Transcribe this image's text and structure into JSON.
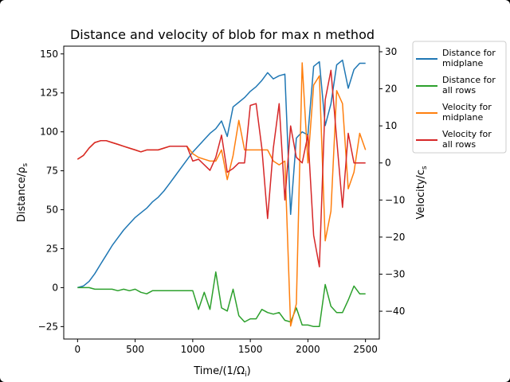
{
  "chart_data": {
    "type": "line",
    "title": "Distance and velocity of blob for max n method",
    "xlabel": "Time/(1/Ω",
    "xlabel_sub": "i",
    "xlabel_close": ")",
    "ylabel_left": "Distance/ρ",
    "ylabel_left_sub": "s",
    "ylabel_right": "Velocity/c",
    "ylabel_right_sub": "s",
    "xlim": [
      -120,
      2620
    ],
    "ylim_left": [
      -33,
      155
    ],
    "ylim_right": [
      -47.5,
      31.5
    ],
    "xticks": [
      0,
      500,
      1000,
      1500,
      2000,
      2500
    ],
    "yticks_left": [
      -25,
      0,
      25,
      50,
      75,
      100,
      125,
      150
    ],
    "yticks_right": [
      -40,
      -30,
      -20,
      -10,
      0,
      10,
      20,
      30
    ],
    "grid": false,
    "legend_position": "outside-right",
    "series": [
      {
        "name": "Distance for midplane",
        "axis": "left",
        "color": "#1f77b4",
        "x": [
          0,
          50,
          100,
          150,
          200,
          250,
          300,
          350,
          400,
          450,
          500,
          550,
          600,
          650,
          700,
          750,
          800,
          850,
          900,
          950,
          1000,
          1050,
          1100,
          1150,
          1200,
          1250,
          1300,
          1350,
          1400,
          1450,
          1500,
          1550,
          1600,
          1650,
          1700,
          1750,
          1800,
          1850,
          1900,
          1950,
          2000,
          2050,
          2100,
          2150,
          2200,
          2250,
          2300,
          2350,
          2400,
          2450,
          2500
        ],
        "y": [
          0,
          1,
          4,
          9,
          15,
          21,
          27,
          32,
          37,
          41,
          45,
          48,
          51,
          55,
          58,
          62,
          67,
          72,
          77,
          82,
          87,
          91,
          95,
          99,
          102,
          107,
          97,
          116,
          119,
          122,
          126,
          129,
          133,
          138,
          134,
          136,
          137,
          47,
          96,
          100,
          98,
          142,
          145,
          104,
          118,
          143,
          146,
          128,
          140,
          144,
          144
        ],
        "x_last": 2500
      },
      {
        "name": "Distance for all rows",
        "axis": "left",
        "color": "#2ca02c",
        "x": [
          0,
          50,
          100,
          150,
          200,
          250,
          300,
          350,
          400,
          450,
          500,
          550,
          600,
          650,
          700,
          750,
          800,
          850,
          900,
          950,
          1000,
          1050,
          1100,
          1150,
          1200,
          1250,
          1300,
          1350,
          1400,
          1450,
          1500,
          1550,
          1600,
          1650,
          1700,
          1750,
          1800,
          1850,
          1900,
          1950,
          2000,
          2050,
          2100,
          2150,
          2200,
          2250,
          2300,
          2350,
          2400,
          2450,
          2500
        ],
        "y": [
          0,
          0,
          0,
          -1,
          -1,
          -1,
          -1,
          -2,
          -1,
          -2,
          -1,
          -3,
          -4,
          -2,
          -2,
          -2,
          -2,
          -2,
          -2,
          -2,
          -2,
          -14,
          -3,
          -14,
          10,
          -13,
          -15,
          -1,
          -18,
          -22,
          -20,
          -20,
          -14,
          -16,
          -17,
          -16,
          -21,
          -22,
          -13,
          -24,
          -24,
          -25,
          -25,
          2,
          -12,
          -16,
          -16,
          -8,
          1,
          -4,
          -4
        ]
      },
      {
        "name": "Velocity for midplane",
        "axis": "right",
        "color": "#ff7f0e",
        "x": [
          1450,
          1500,
          1550,
          1600,
          1650,
          1700,
          1750,
          1800,
          1850,
          1900,
          1950,
          2000,
          2050,
          2100,
          2150,
          2200,
          2250,
          2300,
          2350,
          2400,
          2450,
          2500
        ],
        "y": [
          3.5,
          3.5,
          3.5,
          3.5,
          3.5,
          0.5,
          -0.5,
          0.5,
          -44,
          -38,
          27,
          0,
          21,
          23.5,
          -21,
          -13,
          19.5,
          16,
          -7,
          -2.5,
          8,
          3.5
        ],
        "x_prefix": [
          0,
          50,
          100,
          150,
          200,
          250,
          300,
          350,
          400,
          450,
          500,
          550,
          600,
          650,
          700,
          750,
          800,
          850,
          900,
          950,
          1000,
          1050,
          1100,
          1150,
          1200,
          1250,
          1300,
          1350,
          1400
        ],
        "y_prefix": [
          1,
          2,
          4,
          5.5,
          6,
          6,
          5.5,
          5,
          4.5,
          4,
          3.5,
          3,
          3.5,
          3.5,
          3.5,
          4,
          4.5,
          4.5,
          4.5,
          4.5,
          2.5,
          1.5,
          1,
          0.5,
          0.5,
          3.5,
          -4.5,
          2,
          11.5
        ]
      },
      {
        "name": "Velocity for all rows",
        "axis": "right",
        "color": "#d62728",
        "x": [
          0,
          50,
          100,
          150,
          200,
          250,
          300,
          350,
          400,
          450,
          500,
          550,
          600,
          650,
          700,
          750,
          800,
          850,
          900,
          950,
          1000,
          1050,
          1100,
          1150,
          1200,
          1250,
          1300,
          1350,
          1400,
          1450,
          1500,
          1550,
          1600,
          1650,
          1700,
          1750,
          1800,
          1850,
          1900,
          1950,
          2000,
          2050,
          2100,
          2150,
          2200,
          2250,
          2300,
          2350,
          2400,
          2450,
          2500
        ],
        "y": [
          1,
          2,
          4,
          5.5,
          6,
          6,
          5.5,
          5,
          4.5,
          4,
          3.5,
          3,
          3.5,
          3.5,
          3.5,
          4,
          4.5,
          4.5,
          4.5,
          4.5,
          0.5,
          1,
          -0.5,
          -2,
          1.5,
          7.5,
          -2.5,
          -1.5,
          0,
          0,
          15.5,
          16,
          4,
          -15,
          4,
          16,
          -10,
          10,
          1.5,
          0,
          7.5,
          -19.5,
          -28,
          17,
          25,
          6.5,
          -12,
          8,
          0,
          0,
          0
        ]
      }
    ]
  }
}
